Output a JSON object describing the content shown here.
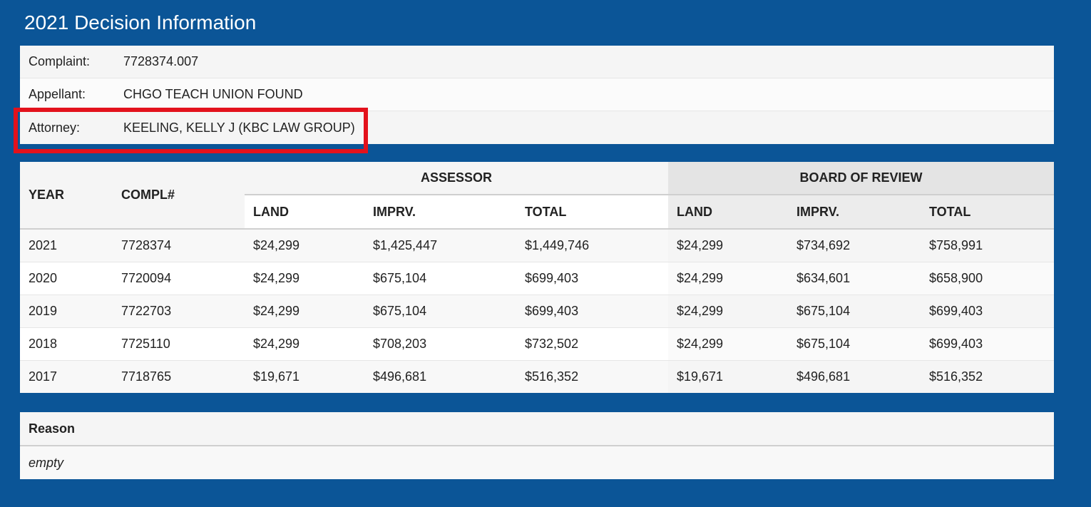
{
  "page": {
    "title": "2021 Decision Information"
  },
  "info": [
    {
      "label": "Complaint:",
      "value": "7728374.007"
    },
    {
      "label": "Appellant:",
      "value": "CHGO TEACH UNION FOUND"
    },
    {
      "label": "Attorney:",
      "value": "KEELING, KELLY J (KBC LAW GROUP)"
    }
  ],
  "highlight": {
    "color": "#e3121c",
    "target": "Attorney:"
  },
  "table": {
    "year_header": "YEAR",
    "compl_header": "COMPL#",
    "assessor_header": "ASSESSOR",
    "bor_header": "BOARD OF REVIEW",
    "sub_headers": {
      "land": "LAND",
      "imprv": "IMPRV.",
      "total": "TOTAL"
    },
    "rows": [
      {
        "year": "2021",
        "compl": "7728374",
        "a_land": "$24,299",
        "a_imprv": "$1,425,447",
        "a_total": "$1,449,746",
        "b_land": "$24,299",
        "b_imprv": "$734,692",
        "b_total": "$758,991"
      },
      {
        "year": "2020",
        "compl": "7720094",
        "a_land": "$24,299",
        "a_imprv": "$675,104",
        "a_total": "$699,403",
        "b_land": "$24,299",
        "b_imprv": "$634,601",
        "b_total": "$658,900"
      },
      {
        "year": "2019",
        "compl": "7722703",
        "a_land": "$24,299",
        "a_imprv": "$675,104",
        "a_total": "$699,403",
        "b_land": "$24,299",
        "b_imprv": "$675,104",
        "b_total": "$699,403"
      },
      {
        "year": "2018",
        "compl": "7725110",
        "a_land": "$24,299",
        "a_imprv": "$708,203",
        "a_total": "$732,502",
        "b_land": "$24,299",
        "b_imprv": "$675,104",
        "b_total": "$699,403"
      },
      {
        "year": "2017",
        "compl": "7718765",
        "a_land": "$19,671",
        "a_imprv": "$496,681",
        "a_total": "$516,352",
        "b_land": "$19,671",
        "b_imprv": "$496,681",
        "b_total": "$516,352"
      }
    ]
  },
  "reason": {
    "header": "Reason",
    "value": "empty"
  },
  "colors": {
    "background": "#0b5597",
    "highlight": "#e3121c"
  }
}
